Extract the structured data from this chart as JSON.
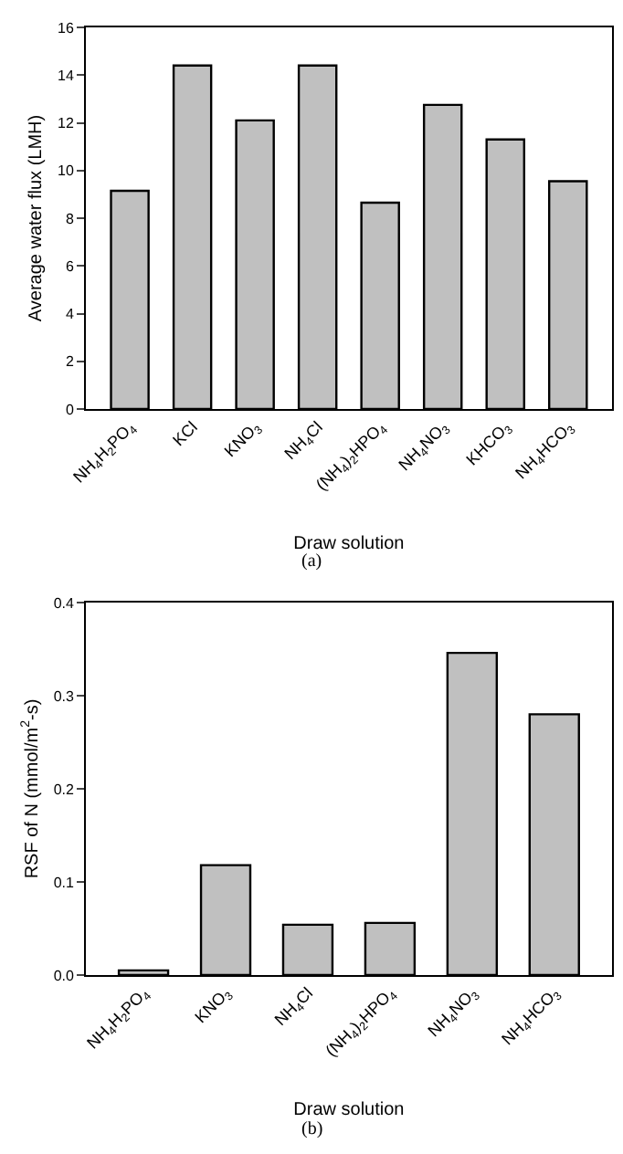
{
  "chart_data": [
    {
      "type": "bar",
      "xlabel": "Draw solution",
      "ylabel": "Average water flux (LMH)",
      "categories": [
        "NH$_{4}$H$_{2}$PO$_{4}$",
        "KCl",
        "KNO$_{3}$",
        "NH$_{4}$Cl",
        "(NH$_{4}$)$_{2}$HPO$_{4}$",
        "NH$_{4}$NO$_{3}$",
        "KHCO$_{3}$",
        "NH$_{4}$HCO$_{3}$"
      ],
      "values": [
        9.15,
        14.4,
        12.1,
        14.4,
        8.65,
        12.75,
        11.3,
        9.55
      ],
      "color": "#c0c0c0",
      "ylim": [
        0,
        16
      ],
      "yticks": [
        0,
        2,
        4,
        6,
        8,
        10,
        12,
        14,
        16
      ],
      "grid": false,
      "annotations": [
        "(a)"
      ]
    },
    {
      "type": "bar",
      "xlabel": "Draw solution",
      "ylabel": "RSF of N (mmol/m$^{2}$-s)",
      "categories": [
        "NH$_{4}$H$_{2}$PO$_{4}$",
        "KNO$_{3}$",
        "NH$_{4}$Cl",
        "(NH$_{4}$)$_{2}$HPO$_{4}$",
        "NH$_{4}$NO$_{3}$",
        "NH$_{4}$HCO$_{3}$"
      ],
      "values": [
        0.005,
        0.118,
        0.054,
        0.056,
        0.346,
        0.28
      ],
      "color": "#c0c0c0",
      "ylim": [
        0,
        0.4
      ],
      "yticks": [
        {
          "value": 0,
          "label": "0.0"
        },
        0.1,
        0.2,
        0.3,
        0.4
      ],
      "grid": false,
      "annotations": [
        "(b)"
      ]
    }
  ]
}
